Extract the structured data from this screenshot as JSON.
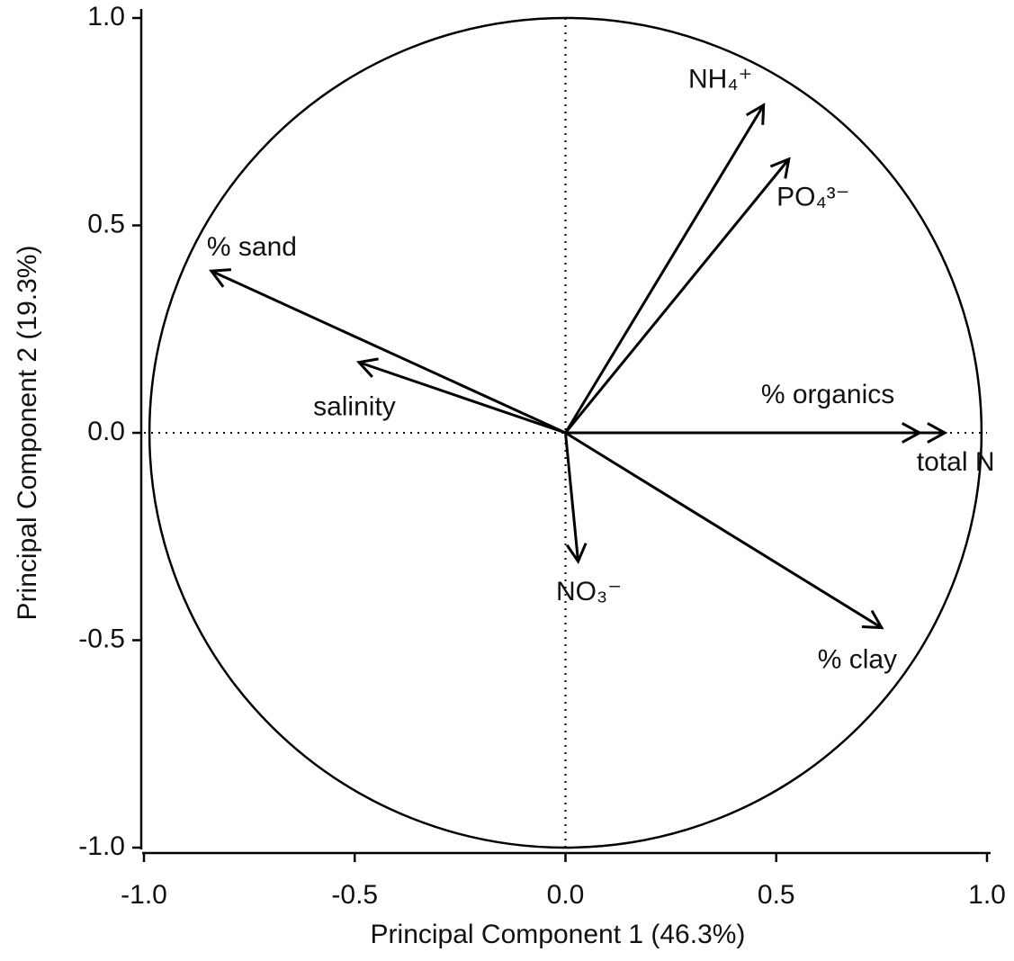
{
  "chart_data": {
    "type": "loadings",
    "xlabel": "Principal Component 1 (46.3%)",
    "ylabel": "Principal Component 2 (19.3%)",
    "xlim": [
      -1,
      1
    ],
    "ylim": [
      -1,
      1
    ],
    "xticks": [
      {
        "value": -1,
        "label": "-1.0"
      },
      {
        "value": -0.5,
        "label": "-0.5"
      },
      {
        "value": 0,
        "label": "0.0"
      },
      0.5,
      {
        "value": 1,
        "label": "1.0"
      }
    ],
    "yticks": [
      {
        "value": -1,
        "label": "-1.0"
      },
      {
        "value": -0.5,
        "label": "-0.5"
      },
      {
        "value": 0,
        "label": "0.0"
      },
      0.5,
      {
        "value": 1,
        "label": "1.0"
      }
    ],
    "reference_circle": true,
    "zero_lines": true,
    "color": "#000000",
    "series": [
      {
        "name": "NH₄⁺",
        "x": 0.47,
        "y": 0.79
      },
      {
        "name": "PO₄³⁻",
        "x": 0.53,
        "y": 0.66
      },
      {
        "name": "% sand",
        "x": -0.84,
        "y": 0.39
      },
      {
        "name": "salinity",
        "x": -0.49,
        "y": 0.17
      },
      {
        "name": "% organics",
        "x": 0.84,
        "y": 0
      },
      {
        "name": "total N",
        "x": 0.9,
        "y": 0
      },
      {
        "name": "NO₃⁻",
        "x": 0.03,
        "y": -0.31
      },
      {
        "name": "% clay",
        "x": 0.75,
        "y": -0.47
      }
    ]
  }
}
